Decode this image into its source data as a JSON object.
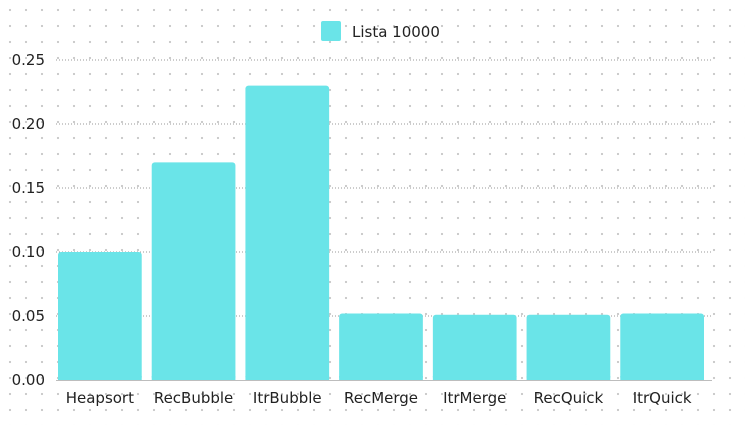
{
  "chart_data": {
    "type": "bar",
    "categories": [
      "Heapsort",
      "RecBubble",
      "ItrBubble",
      "RecMerge",
      "ItrMerge",
      "RecQuick",
      "ItrQuick"
    ],
    "series": [
      {
        "name": "Lista 10000",
        "values": [
          0.1,
          0.17,
          0.23,
          0.052,
          0.051,
          0.051,
          0.052
        ],
        "color": "#6ae4e8"
      }
    ],
    "ylim": [
      0,
      0.25
    ],
    "yticks": [
      "0.00",
      "0.05",
      "0.10",
      "0.15",
      "0.20",
      "0.25"
    ],
    "grid": true,
    "legend_position": "top-center",
    "title": "",
    "xlabel": "",
    "ylabel": ""
  }
}
